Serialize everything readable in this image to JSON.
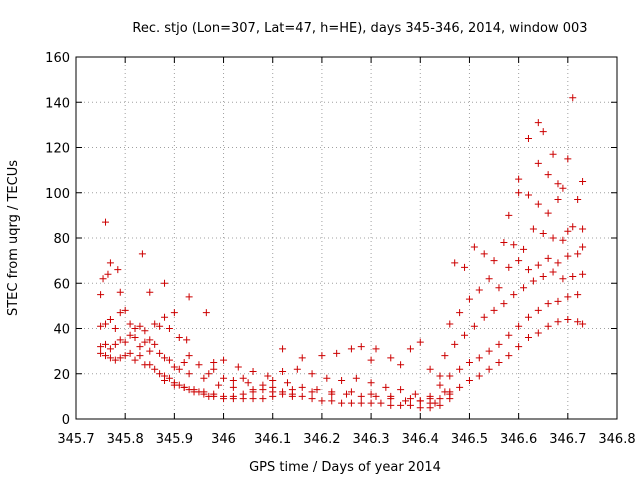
{
  "colors": {
    "series": "#cc0000",
    "frame": "#000000",
    "grid": "#a0a0a0"
  },
  "chart_data": {
    "type": "scatter",
    "title": "Rec. stjo (Lon=307, Lat=47, h=HE), days 345-346, 2014, window 003",
    "xlabel": "GPS time / Days of year 2014",
    "ylabel": "STEC from uqrg / TECUs",
    "xlim": [
      345.7,
      346.8
    ],
    "ylim": [
      0,
      160
    ],
    "x_ticks": [
      345.7,
      345.8,
      345.9,
      346.0,
      346.1,
      346.2,
      346.3,
      346.4,
      346.5,
      346.6,
      346.7,
      346.8
    ],
    "x_tick_labels": [
      "345.7",
      "345.8",
      "345.9",
      "346",
      "346.1",
      "346.2",
      "346.3",
      "346.4",
      "346.5",
      "346.6",
      "346.7",
      "346.8"
    ],
    "y_ticks": [
      0,
      20,
      40,
      60,
      80,
      100,
      120,
      140,
      160
    ],
    "y_tick_labels": [
      "0",
      "20",
      "40",
      "60",
      "80",
      "100",
      "120",
      "140",
      "160"
    ],
    "grid": true,
    "marker": "plus",
    "series": [
      {
        "points": [
          [
            345.75,
            55
          ],
          [
            345.755,
            62
          ],
          [
            345.76,
            87
          ],
          [
            345.765,
            64
          ],
          [
            345.77,
            69
          ],
          [
            345.785,
            66
          ],
          [
            345.79,
            56
          ],
          [
            345.835,
            73
          ],
          [
            345.85,
            56
          ],
          [
            345.88,
            60
          ],
          [
            345.93,
            54
          ],
          [
            345.965,
            47
          ],
          [
            345.75,
            41
          ],
          [
            345.76,
            42
          ],
          [
            345.77,
            44
          ],
          [
            345.78,
            40
          ],
          [
            345.79,
            47
          ],
          [
            345.8,
            48
          ],
          [
            345.81,
            42
          ],
          [
            345.82,
            40
          ],
          [
            345.83,
            41
          ],
          [
            345.84,
            39
          ],
          [
            345.85,
            35
          ],
          [
            345.86,
            42
          ],
          [
            345.87,
            41
          ],
          [
            345.88,
            45
          ],
          [
            345.89,
            40
          ],
          [
            345.9,
            47
          ],
          [
            345.91,
            36
          ],
          [
            345.925,
            35
          ],
          [
            345.75,
            32
          ],
          [
            345.76,
            33
          ],
          [
            345.77,
            31
          ],
          [
            345.78,
            33
          ],
          [
            345.79,
            35
          ],
          [
            345.8,
            34
          ],
          [
            345.81,
            37
          ],
          [
            345.82,
            36
          ],
          [
            345.83,
            32
          ],
          [
            345.84,
            34
          ],
          [
            345.85,
            30
          ],
          [
            345.86,
            33
          ],
          [
            345.87,
            29
          ],
          [
            345.88,
            27
          ],
          [
            345.89,
            26
          ],
          [
            345.9,
            23
          ],
          [
            345.91,
            22
          ],
          [
            345.92,
            25
          ],
          [
            345.93,
            28
          ],
          [
            345.95,
            24
          ],
          [
            345.97,
            20
          ],
          [
            345.98,
            22
          ],
          [
            346.0,
            18
          ],
          [
            346.02,
            17
          ],
          [
            346.04,
            18
          ],
          [
            345.75,
            29
          ],
          [
            345.76,
            28
          ],
          [
            345.77,
            27
          ],
          [
            345.78,
            26
          ],
          [
            345.79,
            27
          ],
          [
            345.8,
            28
          ],
          [
            345.81,
            29
          ],
          [
            345.82,
            26
          ],
          [
            345.83,
            28
          ],
          [
            345.84,
            24
          ],
          [
            345.85,
            24
          ],
          [
            345.86,
            22
          ],
          [
            345.87,
            20
          ],
          [
            345.88,
            19
          ],
          [
            345.89,
            18
          ],
          [
            345.9,
            16
          ],
          [
            345.91,
            15
          ],
          [
            345.92,
            14
          ],
          [
            345.93,
            13
          ],
          [
            345.94,
            13
          ],
          [
            345.95,
            12
          ],
          [
            345.96,
            11
          ],
          [
            345.97,
            10
          ],
          [
            345.98,
            10
          ],
          [
            346.0,
            9
          ],
          [
            346.02,
            9
          ],
          [
            346.04,
            9
          ],
          [
            346.06,
            9
          ],
          [
            346.08,
            9
          ],
          [
            346.1,
            10
          ],
          [
            346.12,
            11
          ],
          [
            346.14,
            10
          ],
          [
            345.88,
            17
          ],
          [
            345.9,
            15
          ],
          [
            345.92,
            14
          ],
          [
            345.94,
            12
          ],
          [
            345.96,
            12
          ],
          [
            345.98,
            11
          ],
          [
            346.0,
            10
          ],
          [
            346.02,
            10
          ],
          [
            346.04,
            11
          ],
          [
            346.06,
            12
          ],
          [
            346.08,
            13
          ],
          [
            346.1,
            14
          ],
          [
            346.12,
            12
          ],
          [
            346.14,
            11
          ],
          [
            346.16,
            10
          ],
          [
            346.18,
            9
          ],
          [
            346.2,
            8
          ],
          [
            346.22,
            8
          ],
          [
            346.24,
            7
          ],
          [
            346.26,
            7
          ],
          [
            346.28,
            7
          ],
          [
            346.3,
            7
          ],
          [
            346.32,
            7
          ],
          [
            346.34,
            6
          ],
          [
            346.36,
            6
          ],
          [
            346.38,
            6
          ],
          [
            346.4,
            5
          ],
          [
            346.42,
            5
          ],
          [
            346.44,
            6
          ],
          [
            345.93,
            20
          ],
          [
            345.96,
            18
          ],
          [
            345.99,
            15
          ],
          [
            346.02,
            14
          ],
          [
            346.05,
            16
          ],
          [
            346.08,
            15
          ],
          [
            346.1,
            17
          ],
          [
            346.13,
            16
          ],
          [
            346.16,
            14
          ],
          [
            346.19,
            13
          ],
          [
            346.22,
            12
          ],
          [
            346.25,
            11
          ],
          [
            346.28,
            10
          ],
          [
            346.31,
            10
          ],
          [
            346.34,
            9
          ],
          [
            346.37,
            8
          ],
          [
            346.4,
            8
          ],
          [
            346.43,
            7
          ],
          [
            346.46,
            9
          ],
          [
            345.98,
            25
          ],
          [
            346.0,
            26
          ],
          [
            346.03,
            23
          ],
          [
            346.06,
            21
          ],
          [
            346.09,
            19
          ],
          [
            346.12,
            21
          ],
          [
            346.15,
            22
          ],
          [
            346.18,
            20
          ],
          [
            346.21,
            18
          ],
          [
            346.24,
            17
          ],
          [
            346.27,
            18
          ],
          [
            346.3,
            16
          ],
          [
            346.33,
            14
          ],
          [
            346.36,
            13
          ],
          [
            346.39,
            11
          ],
          [
            346.42,
            10
          ],
          [
            346.45,
            12
          ],
          [
            346.12,
            31
          ],
          [
            346.16,
            27
          ],
          [
            346.2,
            28
          ],
          [
            346.23,
            29
          ],
          [
            346.26,
            31
          ],
          [
            346.28,
            32
          ],
          [
            346.3,
            26
          ],
          [
            346.31,
            31
          ],
          [
            346.34,
            27
          ],
          [
            346.36,
            24
          ],
          [
            346.38,
            31
          ],
          [
            346.4,
            34
          ],
          [
            346.42,
            22
          ],
          [
            346.44,
            19
          ],
          [
            346.06,
            13
          ],
          [
            346.1,
            12
          ],
          [
            346.14,
            13
          ],
          [
            346.18,
            12
          ],
          [
            346.22,
            11
          ],
          [
            346.26,
            12
          ],
          [
            346.3,
            11
          ],
          [
            346.34,
            10
          ],
          [
            346.38,
            9
          ],
          [
            346.42,
            9
          ],
          [
            346.46,
            11
          ],
          [
            346.4,
            8
          ],
          [
            346.42,
            7
          ],
          [
            346.44,
            9
          ],
          [
            346.46,
            12
          ],
          [
            346.48,
            14
          ],
          [
            346.5,
            17
          ],
          [
            346.52,
            19
          ],
          [
            346.54,
            22
          ],
          [
            346.56,
            25
          ],
          [
            346.58,
            28
          ],
          [
            346.6,
            32
          ],
          [
            346.62,
            36
          ],
          [
            346.64,
            38
          ],
          [
            346.66,
            41
          ],
          [
            346.68,
            43
          ],
          [
            346.7,
            44
          ],
          [
            346.72,
            43
          ],
          [
            346.73,
            42
          ],
          [
            346.44,
            15
          ],
          [
            346.46,
            19
          ],
          [
            346.48,
            22
          ],
          [
            346.5,
            25
          ],
          [
            346.52,
            27
          ],
          [
            346.54,
            30
          ],
          [
            346.56,
            33
          ],
          [
            346.58,
            37
          ],
          [
            346.6,
            41
          ],
          [
            346.62,
            45
          ],
          [
            346.64,
            48
          ],
          [
            346.66,
            51
          ],
          [
            346.68,
            52
          ],
          [
            346.7,
            54
          ],
          [
            346.72,
            55
          ],
          [
            346.45,
            28
          ],
          [
            346.47,
            33
          ],
          [
            346.49,
            37
          ],
          [
            346.51,
            41
          ],
          [
            346.53,
            45
          ],
          [
            346.55,
            48
          ],
          [
            346.57,
            51
          ],
          [
            346.59,
            55
          ],
          [
            346.61,
            58
          ],
          [
            346.63,
            61
          ],
          [
            346.65,
            63
          ],
          [
            346.67,
            65
          ],
          [
            346.69,
            62
          ],
          [
            346.71,
            63
          ],
          [
            346.73,
            64
          ],
          [
            346.46,
            42
          ],
          [
            346.48,
            47
          ],
          [
            346.5,
            53
          ],
          [
            346.52,
            57
          ],
          [
            346.54,
            62
          ],
          [
            346.56,
            58
          ],
          [
            346.58,
            67
          ],
          [
            346.6,
            70
          ],
          [
            346.62,
            66
          ],
          [
            346.64,
            68
          ],
          [
            346.66,
            71
          ],
          [
            346.68,
            69
          ],
          [
            346.7,
            72
          ],
          [
            346.72,
            73
          ],
          [
            346.73,
            76
          ],
          [
            346.47,
            69
          ],
          [
            346.49,
            67
          ],
          [
            346.51,
            76
          ],
          [
            346.53,
            73
          ],
          [
            346.55,
            70
          ],
          [
            346.57,
            78
          ],
          [
            346.59,
            77
          ],
          [
            346.61,
            75
          ],
          [
            346.63,
            84
          ],
          [
            346.65,
            82
          ],
          [
            346.67,
            80
          ],
          [
            346.69,
            79
          ],
          [
            346.71,
            85
          ],
          [
            346.73,
            84
          ],
          [
            346.58,
            90
          ],
          [
            346.6,
            100
          ],
          [
            346.62,
            99
          ],
          [
            346.64,
            95
          ],
          [
            346.66,
            91
          ],
          [
            346.68,
            97
          ],
          [
            346.7,
            83
          ],
          [
            346.72,
            97
          ],
          [
            346.73,
            105
          ],
          [
            346.6,
            106
          ],
          [
            346.62,
            124
          ],
          [
            346.64,
            113
          ],
          [
            346.65,
            127
          ],
          [
            346.66,
            108
          ],
          [
            346.67,
            117
          ],
          [
            346.68,
            104
          ],
          [
            346.69,
            102
          ],
          [
            346.7,
            115
          ],
          [
            346.71,
            142
          ],
          [
            346.64,
            131
          ]
        ]
      }
    ]
  }
}
